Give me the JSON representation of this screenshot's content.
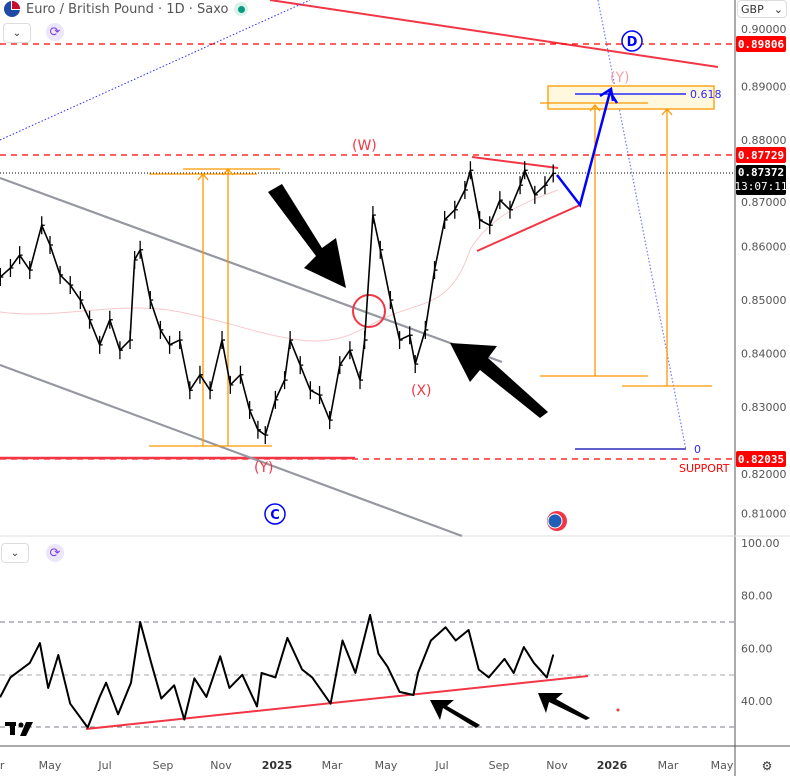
{
  "header": {
    "title": "Euro / British Pound · 1D · Saxo",
    "currency": "GBP",
    "collapse_icon": "chevron-down-icon",
    "sync_icon": "sync-icon"
  },
  "price_labels": {
    "upper_resistance": "0.89806",
    "resistance": "0.87729",
    "last_price": "0.87372",
    "countdown": "13:07:11",
    "support": "0.82035"
  },
  "annotations": {
    "wave_w": "(W)",
    "wave_x": "(X)",
    "wave_y_target": "(Y)",
    "wave_y_low": "(Y)",
    "wave_c": "C",
    "wave_d": "D",
    "fib_level": "0.618",
    "fib_zero": "0",
    "support_text": "SUPPORT"
  },
  "colors": {
    "resistance": "#ff0000",
    "trendline": "#f23645",
    "projection": "#0000ff",
    "measure": "#ff9800",
    "channel": "#9598a1",
    "candles": "#000000"
  },
  "chart_data": [
    {
      "type": "line",
      "title": "",
      "xlabel": "",
      "ylabel": "",
      "ylim": [
        0.805,
        0.901
      ],
      "y_ticks": [
        "0.90000",
        "0.89000",
        "0.88000",
        "0.87000",
        "0.86000",
        "0.85000",
        "0.84000",
        "0.83000",
        "0.82000",
        "0.81000"
      ],
      "x_ticks": [
        "Mar",
        "May",
        "Jul",
        "Sep",
        "Nov",
        "2025",
        "Mar",
        "May",
        "Jul",
        "Sep",
        "Nov",
        "2026",
        "Mar",
        "May"
      ],
      "grid": false,
      "series": [
        {
          "x": [
            "2024-03-08",
            "2024-03-19",
            "2024-03-29",
            "2024-04-09",
            "2024-04-22",
            "2024-05-01",
            "2024-05-12",
            "2024-05-23",
            "2024-06-03",
            "2024-06-13",
            "2024-06-24",
            "2024-07-05",
            "2024-07-16",
            "2024-07-27",
            "2024-08-01",
            "2024-08-07",
            "2024-08-18",
            "2024-08-29",
            "2024-09-08",
            "2024-09-19",
            "2024-09-30",
            "2024-10-11",
            "2024-10-22",
            "2024-11-04",
            "2024-11-13",
            "2024-11-24",
            "2024-12-04",
            "2024-12-13",
            "2024-12-21",
            "2025-01-01",
            "2025-01-11",
            "2025-01-17",
            "2025-01-28",
            "2025-02-08",
            "2025-02-18",
            "2025-03-01",
            "2025-03-12",
            "2025-03-23",
            "2025-04-03",
            "2025-04-08",
            "2025-04-17",
            "2025-04-25",
            "2025-05-06",
            "2025-05-16",
            "2025-05-27",
            "2025-06-02",
            "2025-06-13",
            "2025-06-23",
            "2025-07-04",
            "2025-07-15",
            "2025-07-26",
            "2025-08-01",
            "2025-08-11",
            "2025-08-22",
            "2025-09-02",
            "2025-09-13",
            "2025-09-24",
            "2025-09-29",
            "2025-10-10",
            "2025-10-21",
            "2025-10-30"
          ],
          "y": [
            0.8543,
            0.856,
            0.8584,
            0.8556,
            0.864,
            0.8603,
            0.8547,
            0.8528,
            0.85,
            0.8463,
            0.8416,
            0.8463,
            0.8406,
            0.8425,
            0.8575,
            0.8594,
            0.85,
            0.8444,
            0.8416,
            0.8425,
            0.8331,
            0.836,
            0.8331,
            0.8425,
            0.8341,
            0.836,
            0.8294,
            0.8257,
            0.8247,
            0.8313,
            0.835,
            0.8425,
            0.8378,
            0.8331,
            0.8322,
            0.8275,
            0.8378,
            0.8406,
            0.835,
            0.8425,
            0.8659,
            0.8594,
            0.85,
            0.8425,
            0.8434,
            0.838,
            0.8444,
            0.8556,
            0.865,
            0.8669,
            0.8706,
            0.8743,
            0.865,
            0.864,
            0.8687,
            0.8669,
            0.8715,
            0.8743,
            0.8697,
            0.8715,
            0.8737
          ]
        }
      ]
    },
    {
      "type": "line",
      "title": "",
      "ylim": [
        25,
        100
      ],
      "y_ticks": [
        "100.00",
        "80.00",
        "60.00",
        "40.00"
      ],
      "reference_levels": [
        70,
        50,
        30
      ],
      "grid": false,
      "series": [
        {
          "x": [
            "2024-03-08",
            "2024-03-19",
            "2024-04-09",
            "2024-04-20",
            "2024-04-29",
            "2024-05-10",
            "2024-05-23",
            "2024-06-11",
            "2024-06-24",
            "2024-07-01",
            "2024-07-14",
            "2024-07-28",
            "2024-08-07",
            "2024-08-19",
            "2024-08-30",
            "2024-09-13",
            "2024-09-24",
            "2024-10-05",
            "2024-10-18",
            "2024-11-02",
            "2024-11-12",
            "2024-11-26",
            "2024-12-12",
            "2024-12-17",
            "2025-01-01",
            "2025-01-14",
            "2025-01-30",
            "2025-02-10",
            "2025-03-02",
            "2025-03-15",
            "2025-03-29",
            "2025-04-14",
            "2025-04-23",
            "2025-05-03",
            "2025-05-16",
            "2025-05-31",
            "2025-06-05",
            "2025-06-19",
            "2025-07-05",
            "2025-07-16",
            "2025-07-30",
            "2025-08-10",
            "2025-08-21",
            "2025-09-07",
            "2025-09-17",
            "2025-09-28",
            "2025-10-09",
            "2025-10-23",
            "2025-10-30"
          ],
          "y": [
            41.6,
            49,
            54.5,
            62,
            45,
            57.5,
            39,
            30,
            41.6,
            47,
            35,
            47,
            70,
            54.5,
            41,
            46,
            33,
            48.6,
            41.6,
            57,
            45,
            50,
            38,
            50.7,
            49,
            64,
            52,
            49,
            39,
            63,
            50.7,
            72.7,
            58,
            53,
            43.5,
            42.3,
            50.7,
            63,
            68,
            63,
            67,
            52,
            49,
            56,
            50.7,
            60.5,
            54.5,
            49,
            57.5
          ]
        }
      ]
    }
  ]
}
